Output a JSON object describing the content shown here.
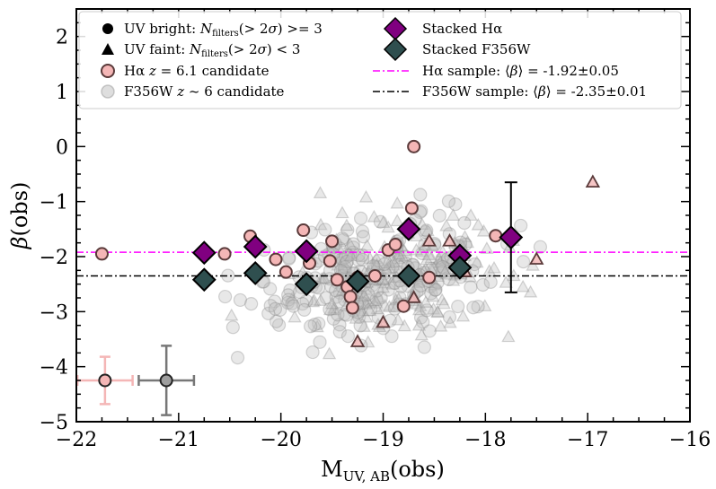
{
  "chart_data": {
    "type": "scatter",
    "xlabel": "M_UV,AB(obs)",
    "ylabel": "β(obs)",
    "xlim": [
      -22,
      -16
    ],
    "ylim": [
      -5,
      2.5
    ],
    "x_ticks": [
      -22,
      -21,
      -20,
      -19,
      -18,
      -17,
      -16
    ],
    "y_ticks": [
      -5,
      -4,
      -3,
      -2,
      -1,
      0,
      1,
      2
    ],
    "x_tick_labels": [
      "−22",
      "−21",
      "−20",
      "−19",
      "−18",
      "−17",
      "−16"
    ],
    "y_tick_labels": [
      "−5",
      "−4",
      "−3",
      "−2",
      "−1",
      "0",
      "1",
      "2"
    ],
    "legend": {
      "left": [
        {
          "key": "uv_bright",
          "label": "UV bright: N_filters(> 2σ) >= 3"
        },
        {
          "key": "uv_faint",
          "label": "UV faint: N_filters(> 2σ) < 3"
        },
        {
          "key": "ha_candidate",
          "label": "Hα z = 6.1 candidate"
        },
        {
          "key": "f356w_candidate",
          "label": "F356W z ~ 6 candidate"
        }
      ],
      "right": [
        {
          "key": "stacked_ha",
          "label": "Stacked Hα"
        },
        {
          "key": "stacked_f356w",
          "label": "Stacked F356W"
        },
        {
          "key": "ha_mean_line",
          "label": "Hα sample: ⟨β⟩ = -1.92±0.05"
        },
        {
          "key": "f356w_mean_line",
          "label": "F356W sample: ⟨β⟩ = -2.35±0.01"
        }
      ]
    },
    "colors": {
      "ha_face": "#f4b6b6",
      "ha_edge": "#5a3a3a",
      "bg_face": "#bdbdbd",
      "stacked_ha": "#800080",
      "stacked_f356w": "#2f4f4f",
      "ha_line": "#ff00ff",
      "f356w_line": "#000000"
    },
    "mean_lines": {
      "ha": -1.92,
      "f356w": -2.35
    },
    "series": [
      {
        "name": "Stacked Hα",
        "marker": "diamond",
        "x": [
          -20.75,
          -20.25,
          -19.75,
          -18.75,
          -18.25,
          -17.75
        ],
        "y": [
          -1.93,
          -1.82,
          -1.9,
          -1.5,
          -1.98,
          -1.65
        ],
        "yerr": [
          null,
          null,
          null,
          null,
          null,
          1.0
        ]
      },
      {
        "name": "Stacked F356W",
        "marker": "diamond",
        "x": [
          -20.75,
          -20.25,
          -19.75,
          -19.25,
          -18.75,
          -18.25
        ],
        "y": [
          -2.42,
          -2.3,
          -2.5,
          -2.45,
          -2.35,
          -2.2
        ],
        "yerr": [
          null,
          null,
          null,
          null,
          null,
          null
        ]
      },
      {
        "name": "Hα z = 6.1 candidate (UV bright)",
        "marker": "circle",
        "x": [
          -21.75,
          -20.55,
          -20.3,
          -20.05,
          -19.95,
          -19.78,
          -19.72,
          -19.52,
          -19.5,
          -19.45,
          -19.35,
          -19.32,
          -19.3,
          -19.25,
          -19.08,
          -18.95,
          -18.88,
          -18.8,
          -18.72,
          -18.55,
          -17.9
        ],
        "y": [
          -1.95,
          -1.95,
          -1.63,
          -2.05,
          -2.28,
          -1.52,
          -2.12,
          -2.08,
          -1.72,
          -2.42,
          -2.55,
          -2.73,
          -2.93,
          -2.38,
          -2.35,
          -1.88,
          -1.78,
          -2.9,
          -1.12,
          -2.38,
          -1.62
        ]
      },
      {
        "name": "Hα z = 6.1 candidate (UV faint)",
        "marker": "triangle",
        "x": [
          -19.25,
          -19.0,
          -18.7,
          -18.55,
          -18.35,
          -18.2,
          -17.5,
          -16.95
        ],
        "y": [
          -3.55,
          -3.2,
          -2.75,
          -1.72,
          -1.72,
          -2.28,
          -2.05,
          -0.65
        ]
      }
    ],
    "single_points": [
      {
        "name": "Hα z = 6.1 candidate",
        "x": -18.7,
        "y": 0.0
      }
    ],
    "error_bar_examples": [
      {
        "name": "Hα typical error",
        "x": -21.72,
        "y": -4.25,
        "xerr": 0.27,
        "yerr": 0.43
      },
      {
        "name": "F356W typical error",
        "x": -21.12,
        "y": -4.25,
        "xerr": 0.27,
        "yerr": 0.63
      }
    ]
  }
}
